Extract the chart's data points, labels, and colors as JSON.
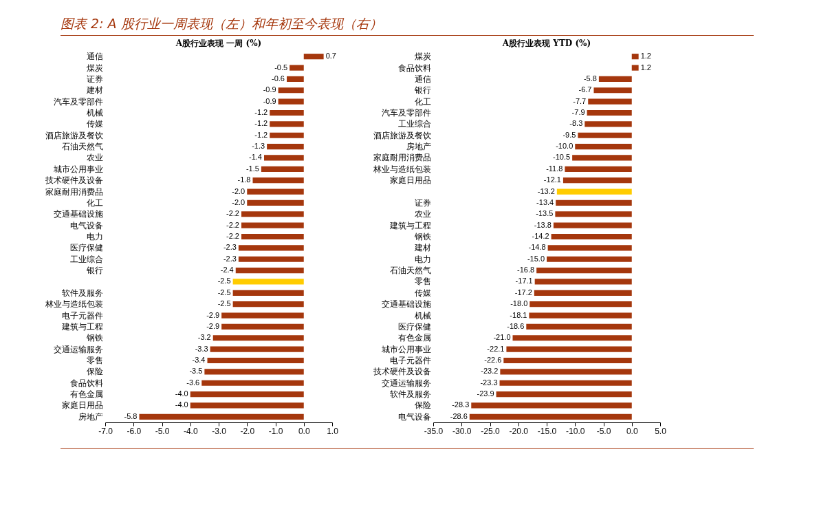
{
  "chart_data": [
    {
      "type": "bar",
      "orientation": "horizontal",
      "title": "A股行业表现 一周 (%)",
      "annotations": [
        "图表 2: A 股行业一周表现（左）和年初至今表现（右）"
      ],
      "categories": [
        "通信",
        "煤炭",
        "证券",
        "建材",
        "汽车及零部件",
        "机械",
        "传媒",
        "酒店旅游及餐饮",
        "石油天然气",
        "农业",
        "城市公用事业",
        "技术硬件及设备",
        "家庭耐用消费品",
        "化工",
        "交通基础设施",
        "电气设备",
        "电力",
        "医疗保健",
        "工业综合",
        "银行",
        null,
        "软件及服务",
        "林业与造纸包装",
        "电子元器件",
        "建筑与工程",
        "钢铁",
        "交通运输服务",
        "零售",
        "保险",
        "食品饮料",
        "有色金属",
        "家庭日用品",
        "房地产"
      ],
      "values": [
        0.7,
        -0.5,
        -0.6,
        -0.9,
        -0.9,
        -1.2,
        -1.2,
        -1.2,
        -1.3,
        -1.4,
        -1.5,
        -1.8,
        -2.0,
        -2.0,
        -2.2,
        -2.2,
        -2.2,
        -2.3,
        -2.3,
        -2.4,
        -2.5,
        -2.5,
        -2.5,
        -2.9,
        -2.9,
        -3.2,
        -3.3,
        -3.4,
        -3.5,
        -3.6,
        -4.0,
        -4.0,
        -5.8
      ],
      "value_labels": [
        "0.7",
        "-0.5",
        "-0.6",
        "-0.9",
        "-0.9",
        "-1.2",
        "-1.2",
        "-1.2",
        "-1.3",
        "-1.4",
        "-1.5",
        "-1.8",
        "-2.0",
        "-2.0",
        "-2.2",
        "-2.2",
        "-2.2",
        "-2.3",
        "-2.3",
        "-2.4",
        "-2.5",
        "-2.5",
        "-2.5",
        "-2.9",
        "-2.9",
        "-3.2",
        "-3.3",
        "-3.4",
        "-3.5",
        "-3.6",
        "-4.0",
        "-4.0",
        "-5.8"
      ],
      "colors": [
        "#a5370d",
        "#a5370d",
        "#a5370d",
        "#a5370d",
        "#a5370d",
        "#a5370d",
        "#a5370d",
        "#a5370d",
        "#a5370d",
        "#a5370d",
        "#a5370d",
        "#a5370d",
        "#a5370d",
        "#a5370d",
        "#a5370d",
        "#a5370d",
        "#a5370d",
        "#a5370d",
        "#a5370d",
        "#a5370d",
        "#ffcc00",
        "#a5370d",
        "#a5370d",
        "#a5370d",
        "#a5370d",
        "#a5370d",
        "#a5370d",
        "#a5370d",
        "#a5370d",
        "#a5370d",
        "#a5370d",
        "#a5370d",
        "#a5370d"
      ],
      "xlim": [
        -7,
        1
      ],
      "xticks": [
        {
          "value": -7,
          "label": "-7.0"
        },
        {
          "value": -6,
          "label": "-6.0"
        },
        {
          "value": -5,
          "label": "-5.0"
        },
        {
          "value": -4,
          "label": "-4.0"
        },
        {
          "value": -3,
          "label": "-3.0"
        },
        {
          "value": -2,
          "label": "-2.0"
        },
        {
          "value": -1,
          "label": "-1.0"
        },
        {
          "value": 0,
          "label": "0.0"
        },
        {
          "value": 1,
          "label": "1.0"
        }
      ],
      "grid": false
    },
    {
      "type": "bar",
      "orientation": "horizontal",
      "title": "A股行业表现 YTD (%)",
      "categories": [
        "煤炭",
        "食品饮料",
        "通信",
        "银行",
        "化工",
        "汽车及零部件",
        "工业综合",
        "酒店旅游及餐饮",
        "房地产",
        "家庭耐用消费品",
        "林业与造纸包装",
        "家庭日用品",
        null,
        "证券",
        "农业",
        "建筑与工程",
        "钢铁",
        "建材",
        "电力",
        "石油天然气",
        "零售",
        "传媒",
        "交通基础设施",
        "机械",
        "医疗保健",
        "有色金属",
        "城市公用事业",
        "电子元器件",
        "技术硬件及设备",
        "交通运输服务",
        "软件及服务",
        "保险",
        "电气设备"
      ],
      "values": [
        1.2,
        1.2,
        -5.8,
        -6.7,
        -7.7,
        -7.9,
        -8.3,
        -9.5,
        -10.0,
        -10.5,
        -11.8,
        -12.1,
        -13.2,
        -13.4,
        -13.5,
        -13.8,
        -14.2,
        -14.8,
        -15.0,
        -16.8,
        -17.1,
        -17.2,
        -18.0,
        -18.1,
        -18.6,
        -21.0,
        -22.1,
        -22.6,
        -23.2,
        -23.3,
        -23.9,
        -28.3,
        -28.6
      ],
      "value_labels": [
        "1.2",
        "1.2",
        "-5.8",
        "-6.7",
        "-7.7",
        "-7.9",
        "-8.3",
        "-9.5",
        "-10.0",
        "-10.5",
        "-11.8",
        "-12.1",
        "-13.2",
        "-13.4",
        "-13.5",
        "-13.8",
        "-14.2",
        "-14.8",
        "-15.0",
        "-16.8",
        "-17.1",
        "-17.2",
        "-18.0",
        "-18.1",
        "-18.6",
        "-21.0",
        "-22.1",
        "-22.6",
        "-23.2",
        "-23.3",
        "-23.9",
        "-28.3",
        "-28.6"
      ],
      "colors": [
        "#a5370d",
        "#a5370d",
        "#a5370d",
        "#a5370d",
        "#a5370d",
        "#a5370d",
        "#a5370d",
        "#a5370d",
        "#a5370d",
        "#a5370d",
        "#a5370d",
        "#a5370d",
        "#ffcc00",
        "#a5370d",
        "#a5370d",
        "#a5370d",
        "#a5370d",
        "#a5370d",
        "#a5370d",
        "#a5370d",
        "#a5370d",
        "#a5370d",
        "#a5370d",
        "#a5370d",
        "#a5370d",
        "#a5370d",
        "#a5370d",
        "#a5370d",
        "#a5370d",
        "#a5370d",
        "#a5370d",
        "#a5370d",
        "#a5370d"
      ],
      "xlim": [
        -35,
        5
      ],
      "xticks": [
        {
          "value": -35,
          "label": "-35.0"
        },
        {
          "value": -30,
          "label": "-30.0"
        },
        {
          "value": -25,
          "label": "-25.0"
        },
        {
          "value": -20,
          "label": "-20.0"
        },
        {
          "value": -15,
          "label": "-15.0"
        },
        {
          "value": -10,
          "label": "-10.0"
        },
        {
          "value": -5,
          "label": "-5.0"
        },
        {
          "value": 0,
          "label": "0.0"
        },
        {
          "value": 5,
          "label": "5.0"
        }
      ],
      "grid": false
    }
  ]
}
